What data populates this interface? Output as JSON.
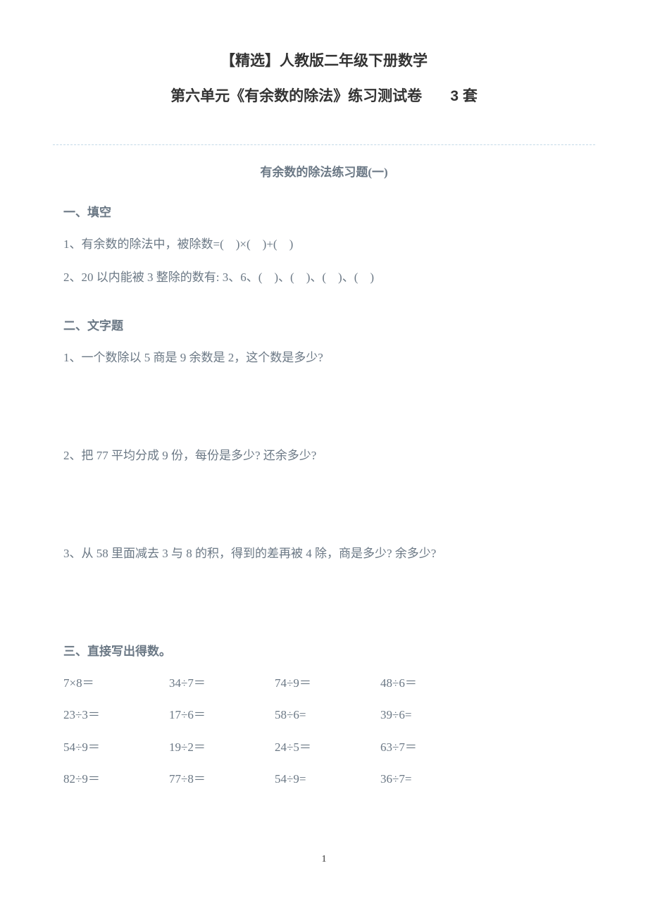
{
  "header": {
    "title": "【精选】人教版二年级下册数学",
    "subtitle_text": "第六单元《有余数的除法》练习测试卷",
    "subtitle_count": "3 套"
  },
  "exercise": {
    "title": "有余数的除法练习题(一)",
    "sections": [
      {
        "heading": "一、填空",
        "questions": [
          "1、有余数的除法中，被除数=(　)×(　)+(　)",
          "2、20 以内能被 3 整除的数有: 3、6、(　)、(　)、(　)、(　)"
        ]
      },
      {
        "heading": "二、文字题",
        "questions": [
          "1、一个数除以 5 商是 9 余数是 2，这个数是多少?",
          "2、把 77 平均分成 9 份，每份是多少? 还余多少?",
          "3、从 58 里面减去 3 与 8 的积，得到的差再被 4 除，商是多少? 余多少?"
        ]
      },
      {
        "heading": "三、直接写出得数。",
        "calc_grid": [
          [
            "7×8＝",
            "34÷7＝",
            "74÷9＝",
            "48÷6＝"
          ],
          [
            "23÷3＝",
            "17÷6＝",
            "58÷6=",
            "39÷6="
          ],
          [
            "54÷9＝",
            "19÷2＝",
            "24÷5＝",
            "63÷7＝"
          ],
          [
            "82÷9＝",
            "77÷8＝",
            "54÷9=",
            "36÷7="
          ]
        ]
      }
    ]
  },
  "page_number": "1",
  "colors": {
    "body_text": "#333333",
    "content_text": "#6b7885",
    "border_dash": "#c4d9e8",
    "background": "#ffffff"
  },
  "typography": {
    "title_fontsize": 21,
    "content_fontsize": 17,
    "pagenum_fontsize": 14,
    "font_family": "SimSun"
  }
}
